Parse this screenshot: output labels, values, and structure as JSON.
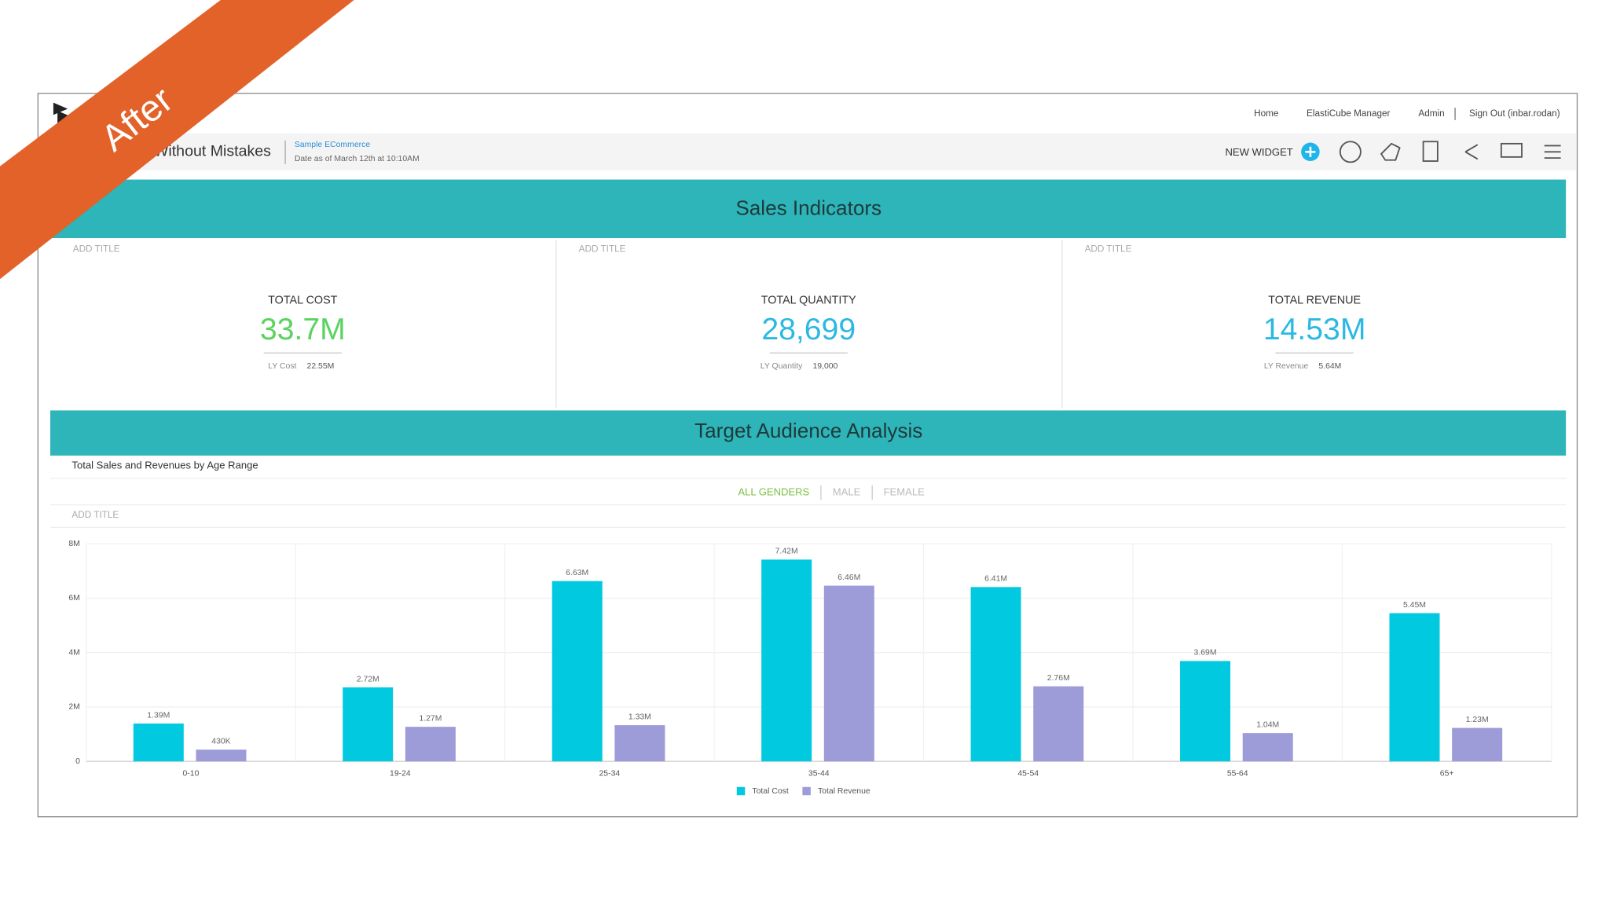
{
  "banner": "After",
  "nav": [
    "Home",
    "ElastiCube Manager",
    "Admin",
    "Sign Out (inbar.rodan)"
  ],
  "dashboard": {
    "title": "Without Mistakes",
    "source": "Sample ECommerce",
    "date": "Date as of March 12th at 10:10AM"
  },
  "toolbar": {
    "new_widget": "NEW WIDGET"
  },
  "sections": [
    "Sales Indicators",
    "Target Audience Analysis"
  ],
  "indicators": [
    {
      "add_title": "ADD TITLE",
      "label": "TOTAL COST",
      "value": "33.7M",
      "ly_label": "LY Cost",
      "ly_value": "22.55M",
      "color": "#5ad35f"
    },
    {
      "add_title": "ADD TITLE",
      "label": "TOTAL QUANTITY",
      "value": "28,699",
      "ly_label": "LY Quantity",
      "ly_value": "19,000",
      "color": "#2bb8e2"
    },
    {
      "add_title": "ADD TITLE",
      "label": "TOTAL REVENUE",
      "value": "14.53M",
      "ly_label": "LY Revenue",
      "ly_value": "5.64M",
      "color": "#2bb8e2"
    }
  ],
  "chart_data": {
    "type": "bar",
    "title": "Total Sales and Revenues by Age Range",
    "filters": [
      "ALL GENDERS",
      "MALE",
      "FEMALE"
    ],
    "add_title": "ADD TITLE",
    "categories": [
      "0-10",
      "19-24",
      "25-34",
      "35-44",
      "45-54",
      "55-64",
      "65+"
    ],
    "series": [
      {
        "name": "Total Cost",
        "color": "#00c9e0",
        "values": [
          1390000,
          2720000,
          6630000,
          7420000,
          6410000,
          3690000,
          5450000
        ],
        "value_labels": [
          "1.39M",
          "2.72M",
          "6.63M",
          "7.42M",
          "6.41M",
          "3.69M",
          "5.45M"
        ]
      },
      {
        "name": "Total Revenue",
        "color": "#9d9bd8",
        "values": [
          430000,
          1270000,
          1330000,
          6460000,
          2760000,
          1040000,
          1230000
        ],
        "value_labels": [
          "430K",
          "1.27M",
          "1.33M",
          "6.46M",
          "2.76M",
          "1.04M",
          "1.23M"
        ]
      }
    ],
    "ylim": [
      0,
      8000000
    ],
    "yticks": [
      0,
      {
        "value": 2000000,
        "label": "2M"
      },
      {
        "value": 4000000,
        "label": "4M"
      },
      {
        "value": 6000000,
        "label": "6M"
      },
      {
        "value": 8000000,
        "label": "8M"
      }
    ],
    "legend": "bottom"
  }
}
